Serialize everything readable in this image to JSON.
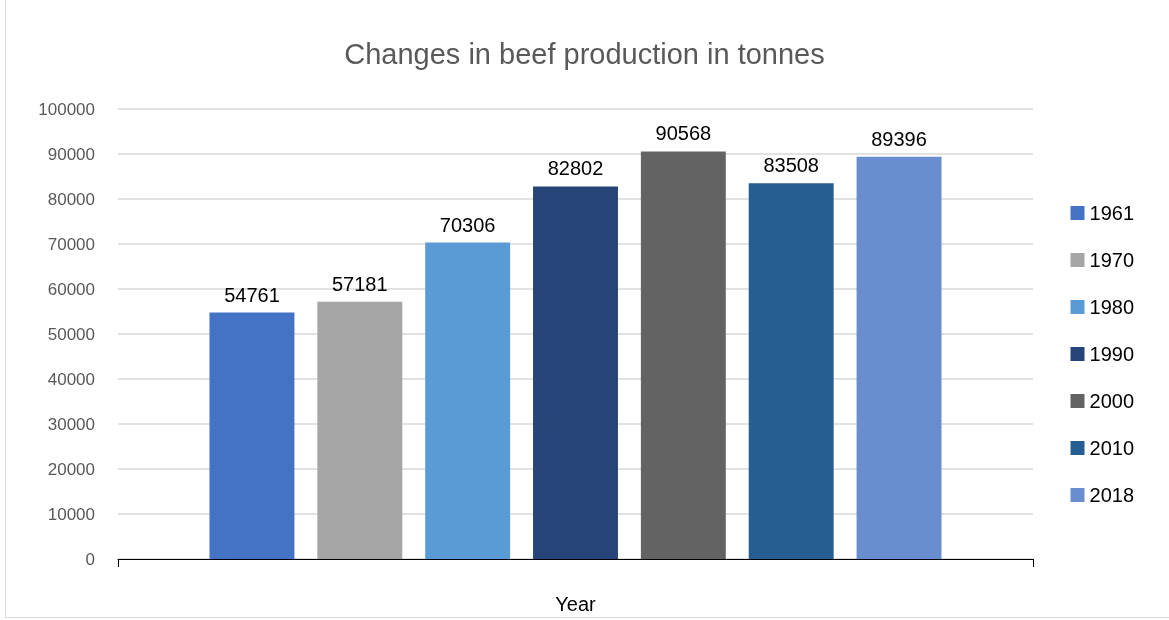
{
  "chart_data": {
    "type": "bar",
    "title": "Changes in beef production in tonnes",
    "xlabel": "Year",
    "categories": [
      null
    ],
    "series": [
      {
        "name": "1961",
        "color": "#4472c4",
        "values": [
          54761
        ]
      },
      {
        "name": "1970",
        "color": "#a5a5a5",
        "values": [
          57181
        ]
      },
      {
        "name": "1980",
        "color": "#5b9bd5",
        "values": [
          70306
        ]
      },
      {
        "name": "1990",
        "color": "#264478",
        "values": [
          82802
        ]
      },
      {
        "name": "2000",
        "color": "#636363",
        "values": [
          90568
        ]
      },
      {
        "name": "2010",
        "color": "#255e91",
        "values": [
          83508
        ]
      },
      {
        "name": "2018",
        "color": "#698ed0",
        "values": [
          89396
        ]
      }
    ],
    "ylim": [
      0,
      100000
    ],
    "yticks": [
      0,
      10000,
      20000,
      30000,
      40000,
      50000,
      60000,
      70000,
      80000,
      90000,
      100000
    ],
    "grid": "y",
    "legend": "right",
    "data_labels": true
  }
}
